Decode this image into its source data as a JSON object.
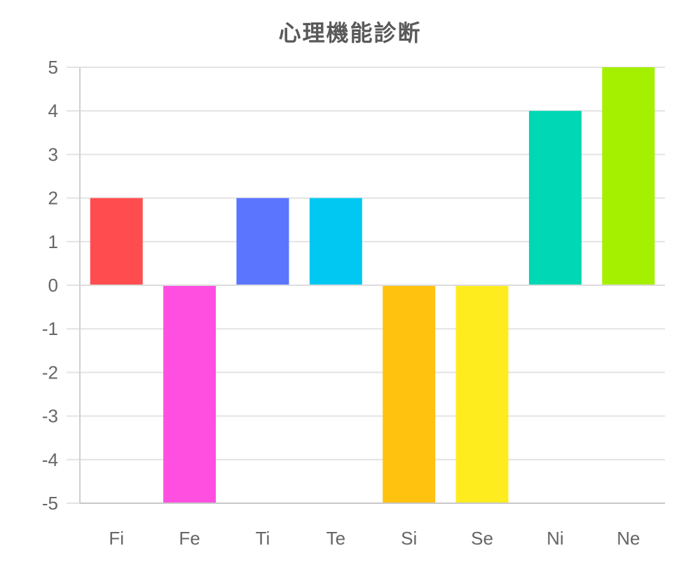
{
  "chart_data": {
    "type": "bar",
    "title": "心理機能診断",
    "categories": [
      "Fi",
      "Fe",
      "Ti",
      "Te",
      "Si",
      "Se",
      "Ni",
      "Ne"
    ],
    "values": [
      2,
      -5,
      2,
      2,
      -5,
      -5,
      4,
      5
    ],
    "colors": [
      "#ff4d4f",
      "#ff4fe1",
      "#5b75ff",
      "#00c8f2",
      "#ffc20e",
      "#ffec1f",
      "#00d8b5",
      "#a4f000"
    ],
    "ylim": [
      -5,
      5
    ],
    "yticks": [
      5,
      4,
      3,
      2,
      1,
      0,
      -1,
      -2,
      -3,
      -4,
      -5
    ],
    "grid": true,
    "legend": "none",
    "xlabel": "",
    "ylabel": ""
  }
}
